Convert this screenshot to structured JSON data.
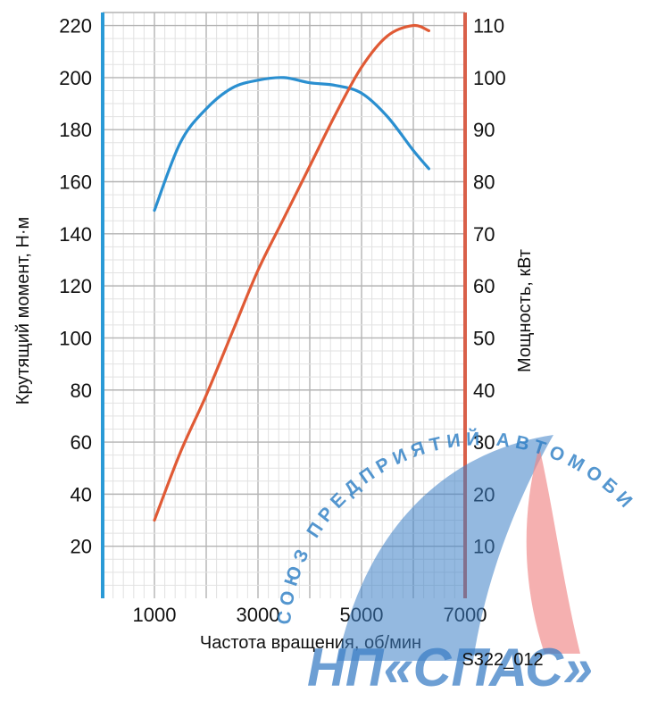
{
  "chart_data": {
    "type": "line",
    "x": [
      1000,
      1500,
      2000,
      2500,
      3000,
      3500,
      4000,
      4500,
      5000,
      5500,
      6000,
      6300
    ],
    "xlabel": "Частота вращения, об/мин",
    "xlim": [
      0,
      7000
    ],
    "x_ticks": [
      "1000",
      "3000",
      "5000",
      "7000"
    ],
    "y_left": {
      "label": "Крутящий момент, Н·м",
      "ylim": [
        0,
        225
      ],
      "ticks": [
        "20",
        "40",
        "60",
        "80",
        "100",
        "120",
        "140",
        "160",
        "180",
        "200",
        "220"
      ]
    },
    "y_right": {
      "label": "Мощность, кВт",
      "ylim": [
        0,
        112.5
      ],
      "ticks": [
        "10",
        "20",
        "30",
        "40",
        "50",
        "60",
        "70",
        "80",
        "90",
        "100",
        "110"
      ]
    },
    "series": [
      {
        "axis": "left",
        "color": "#2a8fd0",
        "x": [
          1000,
          1500,
          2000,
          2500,
          3000,
          3500,
          4000,
          4500,
          5000,
          5500,
          6000,
          6300
        ],
        "values": [
          149,
          175,
          188,
          196,
          199,
          200,
          198,
          197,
          194,
          185,
          172,
          165
        ]
      },
      {
        "axis": "right",
        "color": "#e05a35",
        "x": [
          1000,
          1500,
          2000,
          2500,
          3000,
          3500,
          4000,
          4500,
          5000,
          5500,
          6000,
          6300
        ],
        "values": [
          15,
          28,
          39,
          51,
          63,
          73,
          83,
          93,
          102,
          108,
          110,
          109
        ]
      }
    ],
    "grid": true,
    "axis_colors": {
      "left": "#2a9ad6",
      "right": "#d9604a"
    }
  },
  "figure_code": "S322_012",
  "watermark": {
    "arc_text": "СОЮЗ ПРЕДПРИЯТИЙ АВТОМОБИЛЬНОГО СЕРВИСА",
    "logo_text": "НП«СПАС»"
  }
}
